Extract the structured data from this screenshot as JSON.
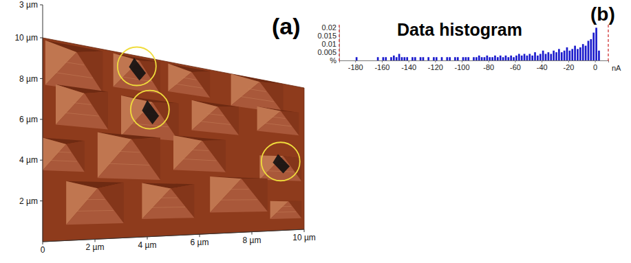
{
  "chart_data": [
    {
      "type": "surface",
      "panel_label": "(a)",
      "xlim": [
        0,
        10
      ],
      "ylim": [
        0,
        10
      ],
      "zlim": [
        0,
        3
      ],
      "xticks": [
        0,
        {
          "value": 2,
          "label": "2 µm"
        },
        {
          "value": 4,
          "label": "4 µm"
        },
        {
          "value": 6,
          "label": "6 µm"
        },
        {
          "value": 8,
          "label": "8 µm"
        },
        {
          "value": 10,
          "label": "10 µm"
        }
      ],
      "yticks": [
        {
          "value": 2,
          "label": "2 µm"
        },
        {
          "value": 4,
          "label": "4 µm"
        },
        {
          "value": 6,
          "label": "6 µm"
        },
        {
          "value": 8,
          "label": "8 µm"
        },
        {
          "value": 10,
          "label": "10 µm"
        }
      ],
      "zticks": [
        {
          "value": 3,
          "label": "3 µm"
        }
      ],
      "color": "#8e3b1c"
    },
    {
      "type": "histogram",
      "title": "Data histogram",
      "panel_label": "(b)",
      "x_label": "nA",
      "bins": [
        -188,
        -186,
        -184,
        -182,
        -180,
        -178,
        -176,
        -174,
        -172,
        -170,
        -168,
        -166,
        -164,
        -162,
        -160,
        -158,
        -156,
        -154,
        -152,
        -150,
        -148,
        -146,
        -144,
        -142,
        -140,
        -138,
        -136,
        -134,
        -132,
        -130,
        -128,
        -126,
        -124,
        -122,
        -120,
        -118,
        -116,
        -114,
        -112,
        -110,
        -108,
        -106,
        -104,
        -102,
        -100,
        -98,
        -96,
        -94,
        -92,
        -90,
        -88,
        -86,
        -84,
        -82,
        -80,
        -78,
        -76,
        -74,
        -72,
        -70,
        -68,
        -66,
        -64,
        -62,
        -60,
        -58,
        -56,
        -54,
        -52,
        -50,
        -48,
        -46,
        -44,
        -42,
        -40,
        -38,
        -36,
        -34,
        -32,
        -30,
        -28,
        -26,
        -24,
        -22,
        -20,
        -18,
        -16,
        -14,
        -12,
        -10,
        -8,
        -6,
        -4,
        -2,
        0,
        2,
        4
      ],
      "counts": [
        0,
        0,
        0,
        0,
        0.002,
        0,
        0,
        0,
        0,
        0,
        0,
        0,
        0.002,
        0,
        0.002,
        0.002,
        0,
        0.002,
        0.003,
        0.002,
        0.004,
        0.002,
        0.002,
        0.002,
        0,
        0.002,
        0.002,
        0,
        0.002,
        0.002,
        0,
        0.002,
        0,
        0.002,
        0.002,
        0,
        0.002,
        0,
        0.002,
        0.002,
        0,
        0.002,
        0.002,
        0,
        0.002,
        0.002,
        0.002,
        0,
        0.002,
        0.002,
        0.003,
        0.002,
        0.002,
        0.003,
        0.002,
        0.002,
        0.003,
        0.002,
        0.003,
        0.002,
        0.003,
        0.002,
        0.003,
        0.002,
        0.003,
        0.004,
        0.003,
        0.004,
        0.003,
        0.004,
        0.003,
        0.005,
        0.003,
        0.004,
        0.006,
        0.004,
        0.005,
        0.004,
        0.006,
        0.005,
        0.007,
        0.005,
        0.006,
        0.008,
        0.006,
        0.007,
        0.009,
        0.007,
        0.008,
        0.01,
        0.009,
        0.012,
        0.013,
        0.017,
        0.02,
        0.006
      ],
      "color": "#1a1acc",
      "xlim": [
        -192,
        10
      ],
      "ylim": [
        0,
        0.021
      ],
      "xticks": [
        -180,
        -160,
        -140,
        -120,
        -100,
        -80,
        -60,
        -40,
        -20,
        0
      ],
      "yticks": [
        {
          "value": 0,
          "label": "%"
        },
        0.005,
        0.01,
        0.015,
        0.02
      ]
    }
  ]
}
